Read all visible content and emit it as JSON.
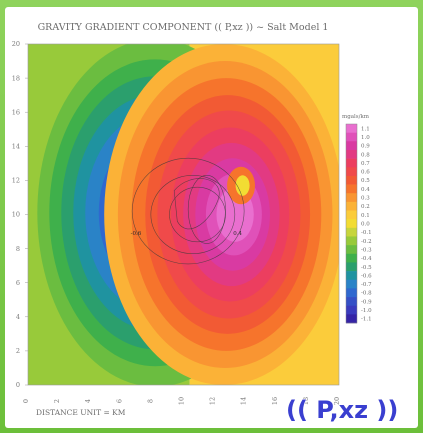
{
  "chart_data": {
    "type": "heatmap",
    "title": "GRAVITY GRADIENT COMPONENT (( P,xz )) ~ Salt Model 1",
    "xlabel": "DISTANCE UNIT = KM",
    "ylabel": "",
    "ylim": [
      0,
      20
    ],
    "y_ticks": [
      "0",
      "2",
      "4",
      "6",
      "8",
      "10",
      "12",
      "14",
      "16",
      "18",
      "20"
    ],
    "x_ticks": [
      "0",
      "2",
      "4",
      "6",
      "8",
      "10",
      "12",
      "14",
      "16",
      "18",
      "20"
    ],
    "colorbar": {
      "unit": "mgals/km",
      "labels": [
        "1.1",
        "1.0",
        "0.9",
        "0.8",
        "0.7",
        "0.6",
        "0.5",
        "0.4",
        "0.3",
        "0.2",
        "0.1",
        "0.0",
        "-0.1",
        "-0.2",
        "-0.3",
        "-0.4",
        "-0.5",
        "-0.6",
        "-0.7",
        "-0.8",
        "-0.9",
        "-1.0",
        "-1.1"
      ],
      "colors": [
        "#e96fcf",
        "#e051b9",
        "#d93aa2",
        "#e23a82",
        "#ec3e5f",
        "#f04a4a",
        "#f25a34",
        "#f6742c",
        "#f99532",
        "#fbb237",
        "#fbcc3b",
        "#f2dc33",
        "#c7d53c",
        "#98ca3a",
        "#6bbd40",
        "#3fb04b",
        "#2b9f6d",
        "#1f93a0",
        "#2a83c7",
        "#2f68cf",
        "#3550c6",
        "#3a3bbd",
        "#3524a6"
      ]
    },
    "anomaly": {
      "negative_center": [
        8.2,
        10.1
      ],
      "positive_center": [
        12.6,
        10.0
      ],
      "peak_negative": -1.1,
      "peak_positive": 1.1,
      "background_left": -0.2,
      "background_right": 0.1
    },
    "contour_labels": [
      "0.4",
      "-0.6"
    ]
  },
  "overlay": {
    "label": "(( P,xz ))",
    "color": "#3a3fd0"
  }
}
